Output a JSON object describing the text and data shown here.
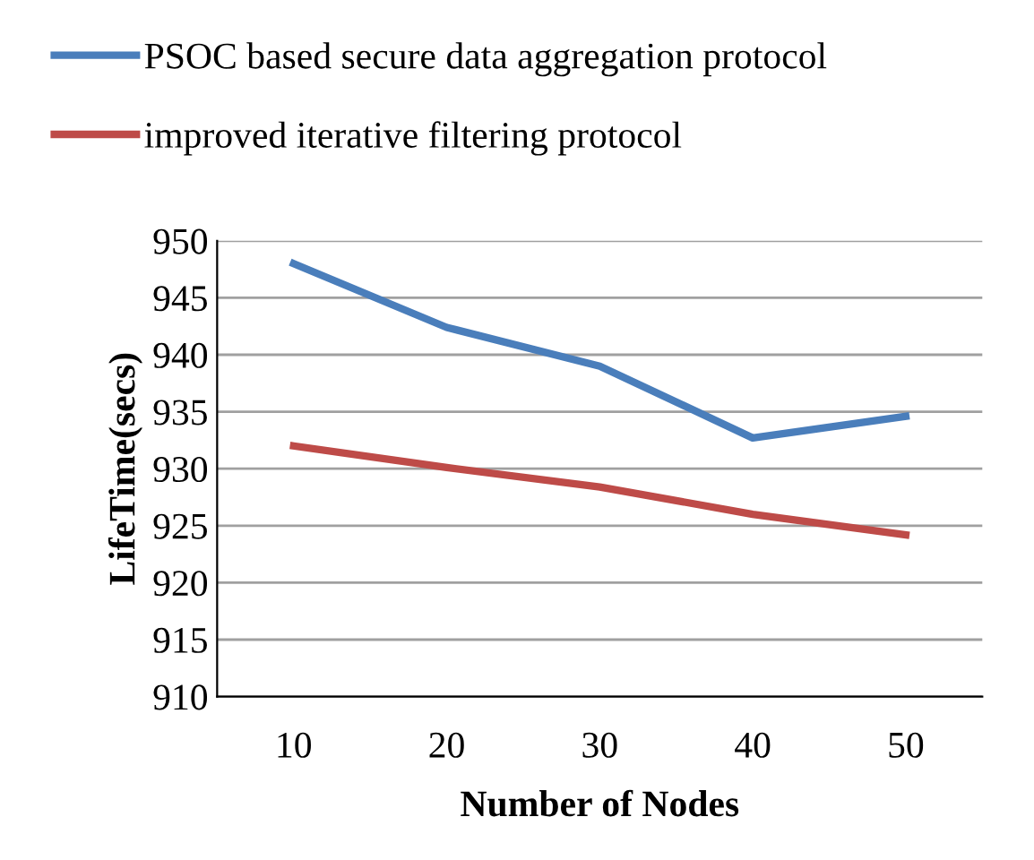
{
  "chart_data": {
    "type": "line",
    "xlabel": "Number of Nodes",
    "ylabel": "LifeTime(secs)",
    "categories": [
      "10",
      "20",
      "30",
      "40",
      "50"
    ],
    "series": [
      {
        "name": "PSOC based secure data aggregation protocol",
        "color": "#4a7ebb",
        "values": [
          948.0,
          942.4,
          939.0,
          932.7,
          934.6
        ]
      },
      {
        "name": "improved iterative filtering protocol",
        "color": "#be4b48",
        "values": [
          932.0,
          930.1,
          928.4,
          926.0,
          924.2
        ]
      }
    ],
    "ylim": [
      910,
      950
    ],
    "yticks": [
      910,
      915,
      920,
      925,
      930,
      935,
      940,
      945,
      950
    ],
    "grid": "y",
    "legend": "top",
    "marker": "none",
    "line_style": "solid"
  }
}
